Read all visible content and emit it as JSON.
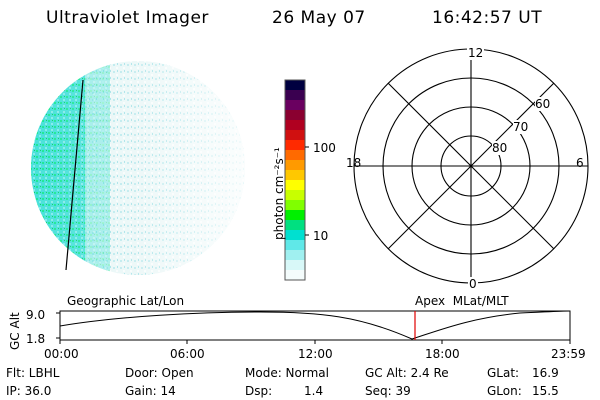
{
  "header": {
    "title": "Ultraviolet Imager",
    "date": "26 May 07",
    "time": "16:42:57 UT"
  },
  "colorbar": {
    "unit_label": "photon cm⁻²s⁻¹",
    "ticks": [
      "100",
      "10"
    ],
    "colors": [
      "#000040",
      "#3a0050",
      "#6a0060",
      "#8a0030",
      "#b00020",
      "#d01010",
      "#ff2a00",
      "#ff6a00",
      "#ff9a00",
      "#ffc800",
      "#ffff00",
      "#c8ff00",
      "#80ff00",
      "#00f000",
      "#00e080",
      "#00e0d0",
      "#60e8e8",
      "#a0f0f0",
      "#d8f8f8",
      "#f4fcfc"
    ]
  },
  "polar": {
    "mlt_labels": [
      "12",
      "6",
      "0",
      "18"
    ],
    "lat_labels": [
      "60",
      "70",
      "80"
    ]
  },
  "timeline": {
    "left_label": "Geographic Lat/Lon",
    "right_label": "Apex  MLat/MLT",
    "axis_title": "GC Alt",
    "y_ticks": [
      "9.0",
      "1.8"
    ],
    "x_ticks": [
      "00:00",
      "06:00",
      "12:00",
      "18:00",
      "23:59"
    ],
    "marker_color": "#e00000"
  },
  "status": {
    "flt": "Flt: LBHL",
    "ip": "IP: 36.0",
    "door": "Door: Open",
    "gain": "Gain: 14",
    "mode": "Mode: Normal",
    "dsp_label": "Dsp:",
    "dsp_value": "1.4",
    "gc_alt": "GC Alt: 2.4 Re",
    "seq": "Seq: 39",
    "glat_label": "GLat:",
    "glat_value": "16.9",
    "glon_label": "GLon:",
    "glon_value": "15.5"
  }
}
